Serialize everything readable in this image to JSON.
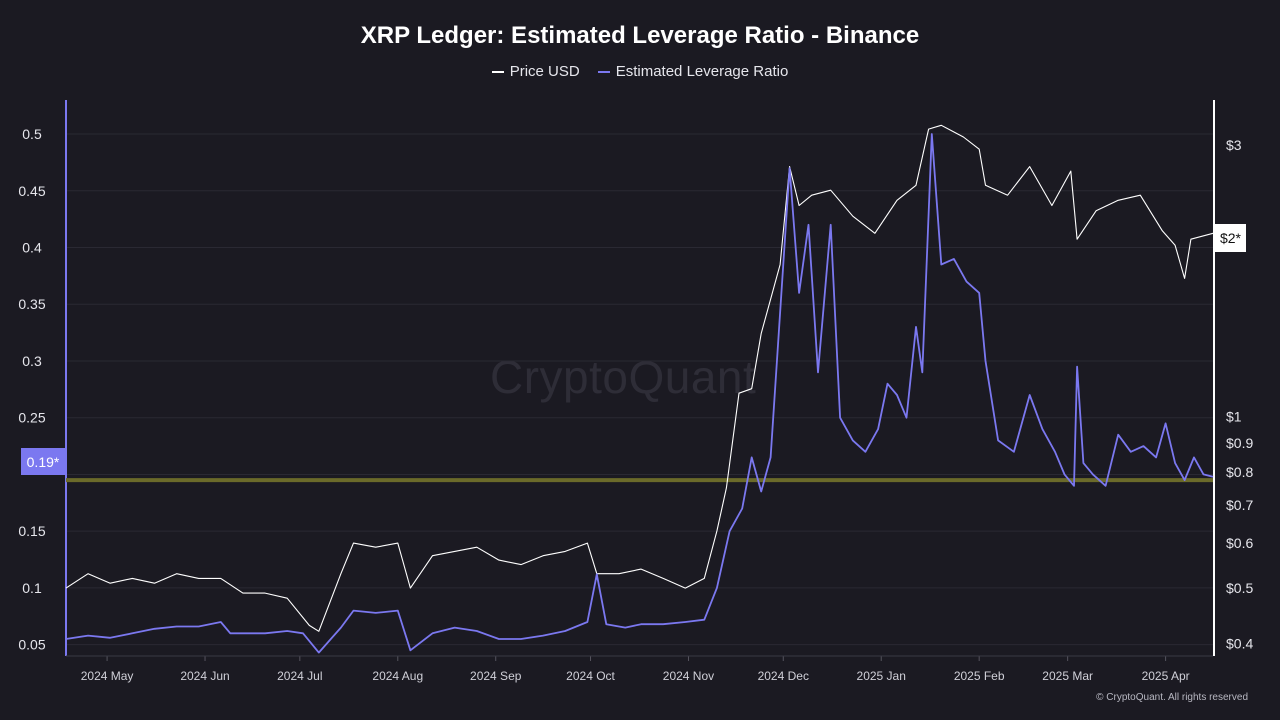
{
  "chart_data": {
    "type": "line",
    "title": "XRP Ledger: Estimated Leverage Ratio - Binance",
    "legend_placement": "top-center",
    "grid": true,
    "x_ticks": [
      "2024 May",
      "2024 Jun",
      "2024 Jul",
      "2024 Aug",
      "2024 Sep",
      "2024 Oct",
      "2024 Nov",
      "2024 Dec",
      "2025 Jan",
      "2025 Feb",
      "2025 Mar",
      "2025 Apr"
    ],
    "x_range": [
      "2024-04-18",
      "2025-04-16"
    ],
    "y_left": {
      "ticks": [
        0.05,
        0.1,
        0.15,
        0.2,
        0.25,
        0.3,
        0.35,
        0.4,
        0.45,
        0.5
      ],
      "tick_labels": [
        "0.05",
        "0.1",
        "0.15",
        "",
        "0.25",
        "0.3",
        "0.35",
        "0.4",
        "0.45",
        "0.5"
      ],
      "range": [
        0.04,
        0.53
      ],
      "color": "#7b78f0"
    },
    "y_right": {
      "scale": "log",
      "tick_values": [
        3,
        1,
        0.9,
        0.8,
        0.7,
        0.6,
        0.5,
        0.4
      ],
      "tick_labels": [
        "$3",
        "$1",
        "$0.9",
        "$0.8",
        "$0.7",
        "$0.6",
        "$0.5",
        "$0.4"
      ],
      "range": [
        0.38,
        3.6
      ],
      "color": "#ffffff"
    },
    "reference_line": {
      "value": 0.195,
      "color": "#6b6a2a"
    },
    "current_left": "0.19*",
    "current_right": "$2*",
    "series": [
      {
        "name": "Price USD",
        "axis": "right",
        "color": "#ffffff",
        "points": [
          [
            "2024-04-18",
            0.5
          ],
          [
            "2024-04-25",
            0.53
          ],
          [
            "2024-05-02",
            0.51
          ],
          [
            "2024-05-09",
            0.52
          ],
          [
            "2024-05-16",
            0.51
          ],
          [
            "2024-05-23",
            0.53
          ],
          [
            "2024-05-30",
            0.52
          ],
          [
            "2024-06-06",
            0.52
          ],
          [
            "2024-06-13",
            0.49
          ],
          [
            "2024-06-20",
            0.49
          ],
          [
            "2024-06-27",
            0.48
          ],
          [
            "2024-07-04",
            0.43
          ],
          [
            "2024-07-07",
            0.42
          ],
          [
            "2024-07-14",
            0.53
          ],
          [
            "2024-07-18",
            0.6
          ],
          [
            "2024-07-25",
            0.59
          ],
          [
            "2024-08-01",
            0.6
          ],
          [
            "2024-08-05",
            0.5
          ],
          [
            "2024-08-12",
            0.57
          ],
          [
            "2024-08-19",
            0.58
          ],
          [
            "2024-08-26",
            0.59
          ],
          [
            "2024-09-02",
            0.56
          ],
          [
            "2024-09-09",
            0.55
          ],
          [
            "2024-09-16",
            0.57
          ],
          [
            "2024-09-23",
            0.58
          ],
          [
            "2024-09-30",
            0.6
          ],
          [
            "2024-10-03",
            0.53
          ],
          [
            "2024-10-10",
            0.53
          ],
          [
            "2024-10-17",
            0.54
          ],
          [
            "2024-10-24",
            0.52
          ],
          [
            "2024-10-31",
            0.5
          ],
          [
            "2024-11-06",
            0.52
          ],
          [
            "2024-11-10",
            0.63
          ],
          [
            "2024-11-13",
            0.75
          ],
          [
            "2024-11-17",
            1.1
          ],
          [
            "2024-11-21",
            1.12
          ],
          [
            "2024-11-24",
            1.4
          ],
          [
            "2024-11-30",
            1.85
          ],
          [
            "2024-12-03",
            2.75
          ],
          [
            "2024-12-06",
            2.35
          ],
          [
            "2024-12-10",
            2.45
          ],
          [
            "2024-12-16",
            2.5
          ],
          [
            "2024-12-23",
            2.25
          ],
          [
            "2024-12-30",
            2.1
          ],
          [
            "2025-01-06",
            2.4
          ],
          [
            "2025-01-12",
            2.55
          ],
          [
            "2025-01-16",
            3.2
          ],
          [
            "2025-01-20",
            3.25
          ],
          [
            "2025-01-27",
            3.1
          ],
          [
            "2025-02-01",
            2.95
          ],
          [
            "2025-02-03",
            2.55
          ],
          [
            "2025-02-10",
            2.45
          ],
          [
            "2025-02-17",
            2.75
          ],
          [
            "2025-02-24",
            2.35
          ],
          [
            "2025-03-02",
            2.7
          ],
          [
            "2025-03-04",
            2.05
          ],
          [
            "2025-03-10",
            2.3
          ],
          [
            "2025-03-17",
            2.4
          ],
          [
            "2025-03-24",
            2.45
          ],
          [
            "2025-03-31",
            2.12
          ],
          [
            "2025-04-04",
            2.0
          ],
          [
            "2025-04-07",
            1.75
          ],
          [
            "2025-04-09",
            2.05
          ],
          [
            "2025-04-16",
            2.1
          ]
        ]
      },
      {
        "name": "Estimated Leverage Ratio",
        "axis": "left",
        "color": "#7b78f0",
        "points": [
          [
            "2024-04-18",
            0.055
          ],
          [
            "2024-04-25",
            0.058
          ],
          [
            "2024-05-02",
            0.056
          ],
          [
            "2024-05-09",
            0.06
          ],
          [
            "2024-05-16",
            0.064
          ],
          [
            "2024-05-23",
            0.066
          ],
          [
            "2024-05-30",
            0.066
          ],
          [
            "2024-06-06",
            0.07
          ],
          [
            "2024-06-09",
            0.06
          ],
          [
            "2024-06-13",
            0.06
          ],
          [
            "2024-06-20",
            0.06
          ],
          [
            "2024-06-27",
            0.062
          ],
          [
            "2024-07-02",
            0.06
          ],
          [
            "2024-07-07",
            0.043
          ],
          [
            "2024-07-14",
            0.065
          ],
          [
            "2024-07-18",
            0.08
          ],
          [
            "2024-07-25",
            0.078
          ],
          [
            "2024-08-01",
            0.08
          ],
          [
            "2024-08-05",
            0.045
          ],
          [
            "2024-08-12",
            0.06
          ],
          [
            "2024-08-19",
            0.065
          ],
          [
            "2024-08-26",
            0.062
          ],
          [
            "2024-09-02",
            0.055
          ],
          [
            "2024-09-09",
            0.055
          ],
          [
            "2024-09-16",
            0.058
          ],
          [
            "2024-09-23",
            0.062
          ],
          [
            "2024-09-30",
            0.07
          ],
          [
            "2024-10-03",
            0.112
          ],
          [
            "2024-10-06",
            0.068
          ],
          [
            "2024-10-12",
            0.065
          ],
          [
            "2024-10-17",
            0.068
          ],
          [
            "2024-10-24",
            0.068
          ],
          [
            "2024-10-31",
            0.07
          ],
          [
            "2024-11-06",
            0.072
          ],
          [
            "2024-11-10",
            0.1
          ],
          [
            "2024-11-14",
            0.15
          ],
          [
            "2024-11-18",
            0.17
          ],
          [
            "2024-11-21",
            0.215
          ],
          [
            "2024-11-24",
            0.185
          ],
          [
            "2024-11-27",
            0.215
          ],
          [
            "2024-12-03",
            0.47
          ],
          [
            "2024-12-06",
            0.36
          ],
          [
            "2024-12-09",
            0.42
          ],
          [
            "2024-12-12",
            0.29
          ],
          [
            "2024-12-16",
            0.42
          ],
          [
            "2024-12-19",
            0.25
          ],
          [
            "2024-12-23",
            0.23
          ],
          [
            "2024-12-27",
            0.22
          ],
          [
            "2024-12-31",
            0.24
          ],
          [
            "2025-01-03",
            0.28
          ],
          [
            "2025-01-06",
            0.27
          ],
          [
            "2025-01-09",
            0.25
          ],
          [
            "2025-01-12",
            0.33
          ],
          [
            "2025-01-14",
            0.29
          ],
          [
            "2025-01-17",
            0.5
          ],
          [
            "2025-01-20",
            0.385
          ],
          [
            "2025-01-24",
            0.39
          ],
          [
            "2025-01-28",
            0.37
          ],
          [
            "2025-02-01",
            0.36
          ],
          [
            "2025-02-03",
            0.3
          ],
          [
            "2025-02-07",
            0.23
          ],
          [
            "2025-02-12",
            0.22
          ],
          [
            "2025-02-17",
            0.27
          ],
          [
            "2025-02-21",
            0.24
          ],
          [
            "2025-02-25",
            0.22
          ],
          [
            "2025-02-28",
            0.2
          ],
          [
            "2025-03-03",
            0.19
          ],
          [
            "2025-03-04",
            0.295
          ],
          [
            "2025-03-06",
            0.21
          ],
          [
            "2025-03-09",
            0.2
          ],
          [
            "2025-03-13",
            0.19
          ],
          [
            "2025-03-17",
            0.235
          ],
          [
            "2025-03-21",
            0.22
          ],
          [
            "2025-03-25",
            0.225
          ],
          [
            "2025-03-29",
            0.215
          ],
          [
            "2025-04-01",
            0.245
          ],
          [
            "2025-04-04",
            0.21
          ],
          [
            "2025-04-07",
            0.195
          ],
          [
            "2025-04-10",
            0.215
          ],
          [
            "2025-04-13",
            0.2
          ],
          [
            "2025-04-16",
            0.198
          ]
        ]
      }
    ]
  },
  "copyright": "© CryptoQuant. All rights reserved",
  "watermark": "CryptoQuant"
}
